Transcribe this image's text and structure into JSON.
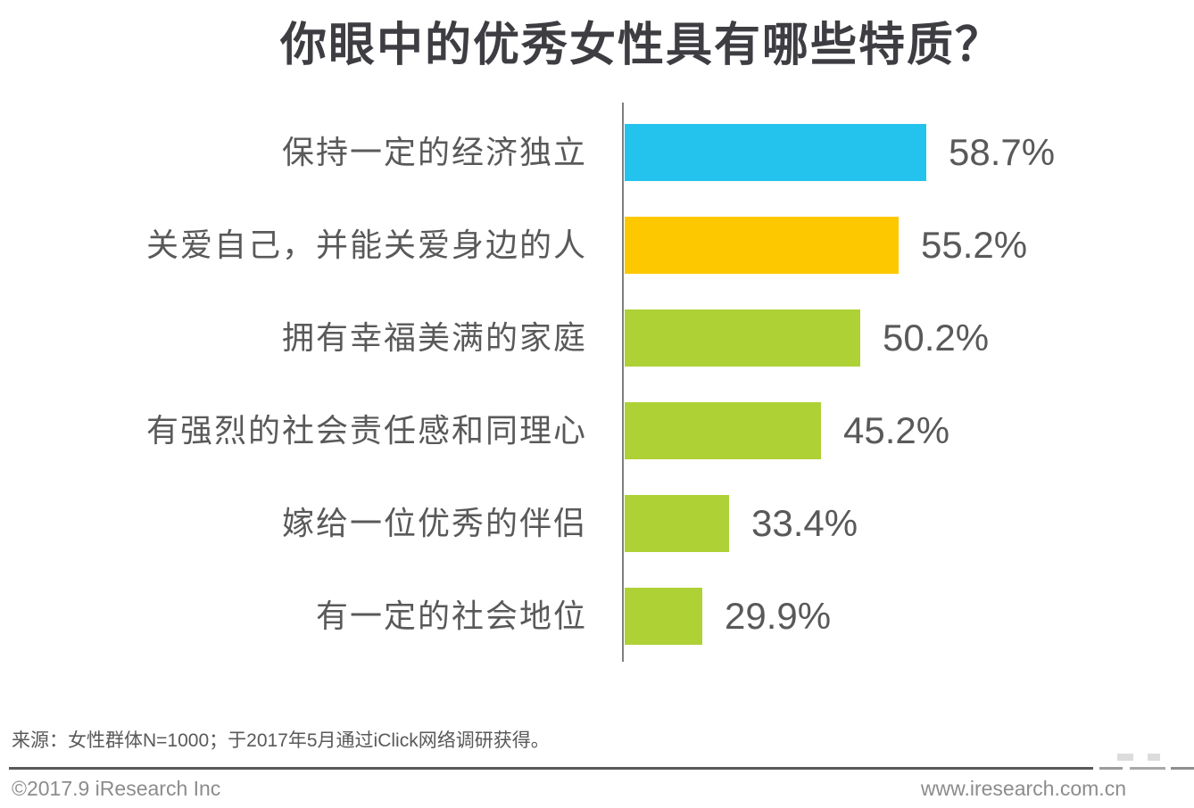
{
  "title": "你眼中的优秀女性具有哪些特质？",
  "chart_data": {
    "type": "bar",
    "orientation": "horizontal",
    "title": "你眼中的优秀女性具有哪些特质？",
    "categories": [
      "保持一定的经济独立",
      "关爱自己，并能关爱身边的人",
      "拥有幸福美满的家庭",
      "有强烈的社会责任感和同理心",
      "嫁给一位优秀的伴侣",
      "有一定的社会地位"
    ],
    "values": [
      58.7,
      55.2,
      50.2,
      45.2,
      33.4,
      29.9
    ],
    "value_labels": [
      "58.7%",
      "55.2%",
      "50.2%",
      "45.2%",
      "33.4%",
      "29.9%"
    ],
    "bar_colors": [
      "#24c3ee",
      "#fdc800",
      "#aed136",
      "#aed136",
      "#aed136",
      "#aed136"
    ],
    "xlabel": "",
    "ylabel": "",
    "xlim": [
      19.9,
      60
    ],
    "grid": false,
    "legend": false,
    "axis_color": "#7f7f7f",
    "label_color": "#595959"
  },
  "source_note": "来源：女性群体N=1000；于2017年5月通过iClick网络调研获得。",
  "footer": {
    "copyright": "©2017.9 iResearch Inc",
    "website": "www.iresearch.com.cn"
  },
  "palette": {
    "title_text": "#3d3d42",
    "body_text": "#595959",
    "footer_text": "#8c8c8c",
    "divider": "#595959",
    "background": "#ffffff"
  }
}
